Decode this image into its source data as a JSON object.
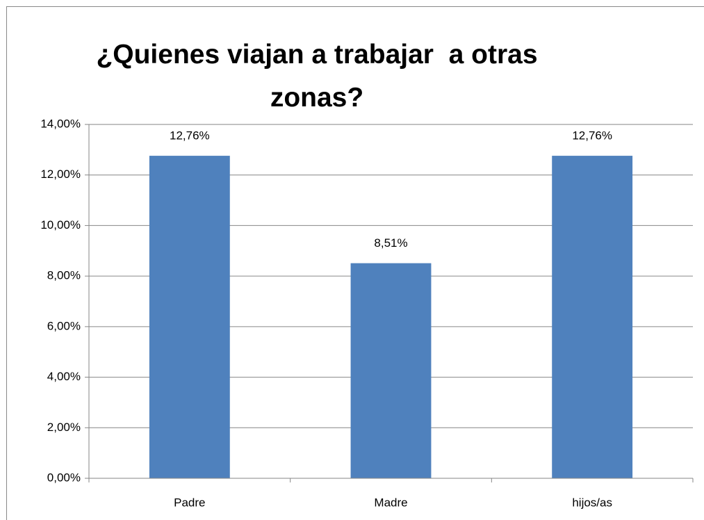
{
  "chart_data": {
    "type": "bar",
    "title": "¿Quienes viajan a trabajar  a otras zonas?",
    "categories": [
      "Padre",
      "Madre",
      "hijos/as"
    ],
    "values": [
      12.76,
      8.51,
      12.76
    ],
    "value_labels": [
      "12,76%",
      "8,51%",
      "12,76%"
    ],
    "color": "#4f81bd",
    "ylim": [
      0,
      14
    ],
    "yticks": [
      {
        "value": 0,
        "label": "0,00%"
      },
      {
        "value": 2,
        "label": "2,00%"
      },
      {
        "value": 4,
        "label": "4,00%"
      },
      {
        "value": 6,
        "label": "6,00%"
      },
      {
        "value": 8,
        "label": "8,00%"
      },
      {
        "value": 10,
        "label": "10,00%"
      },
      {
        "value": 12,
        "label": "12,00%"
      },
      {
        "value": 14,
        "label": "14,00%"
      }
    ],
    "grid": true
  }
}
